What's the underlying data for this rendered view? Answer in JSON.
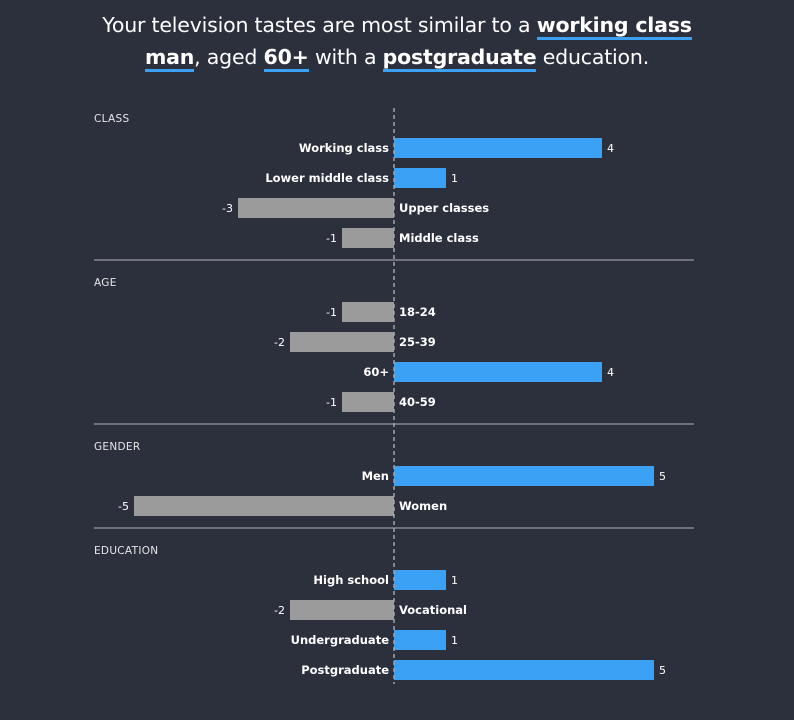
{
  "headline": {
    "line1_before": "Your television tastes are most similar to a ",
    "line1_highlight": "working class",
    "line2_highlight1": "man",
    "line2_text1": ", aged ",
    "line2_highlight2": "60+",
    "line2_text2": " with a ",
    "line2_highlight3": "postgraduate",
    "line2_text3": " education."
  },
  "colors": {
    "background": "#2c303d",
    "positive": "#3aa1f4",
    "negative": "#9b9b9b",
    "divider": "#6f727b",
    "axis": "#a0a3ab"
  },
  "chart_data": {
    "type": "bar",
    "orientation": "horizontal",
    "xlim": [
      -5,
      5
    ],
    "groups": [
      {
        "title": "CLASS",
        "categories": [
          "Working class",
          "Lower middle class",
          "Upper classes",
          "Middle class"
        ],
        "values": [
          4,
          1,
          -3,
          -1
        ]
      },
      {
        "title": "AGE",
        "categories": [
          "18-24",
          "25-39",
          "60+",
          "40-59"
        ],
        "values": [
          -1,
          -2,
          4,
          -1
        ]
      },
      {
        "title": "GENDER",
        "categories": [
          "Men",
          "Women"
        ],
        "values": [
          5,
          -5
        ]
      },
      {
        "title": "EDUCATION",
        "categories": [
          "High school",
          "Vocational",
          "Undergraduate",
          "Postgraduate"
        ],
        "values": [
          1,
          -2,
          1,
          5
        ]
      }
    ]
  }
}
